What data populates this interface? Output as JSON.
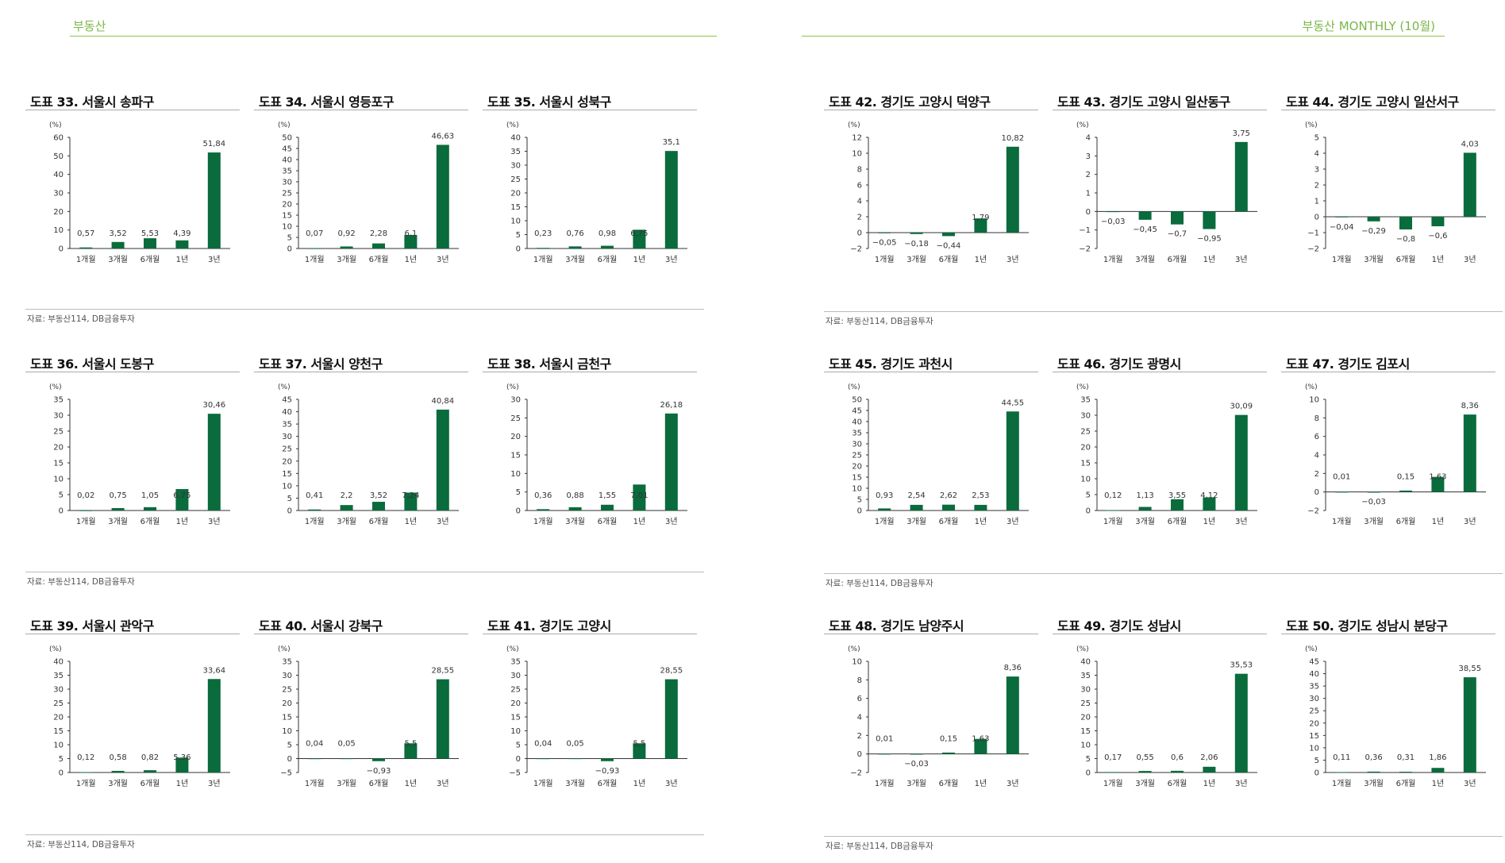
{
  "header": {
    "left": "부동산",
    "right": "부동산 MONTHLY (10월)"
  },
  "source_label": "자료: 부동산114, DB금융투자",
  "colors": {
    "bar": "#0a6b3c",
    "accent": "#7ab648"
  },
  "chart_data": [
    {
      "type": "bar",
      "title": "도표 33. 서울시 송파구",
      "unit": "(%)",
      "categories": [
        "1개월",
        "3개월",
        "6개월",
        "1년",
        "3년"
      ],
      "values": [
        0.57,
        3.52,
        5.53,
        4.39,
        51.84
      ],
      "labels": [
        "0,57",
        "3,52",
        "5,53",
        "4,39",
        "51,84"
      ],
      "ylim": [
        0,
        60
      ],
      "ticks": [
        0,
        10,
        20,
        30,
        40,
        50,
        60
      ]
    },
    {
      "type": "bar",
      "title": "도표 34. 서울시 영등포구",
      "unit": "(%)",
      "categories": [
        "1개월",
        "3개월",
        "6개월",
        "1년",
        "3년"
      ],
      "values": [
        0.07,
        0.92,
        2.28,
        6.1,
        46.63
      ],
      "labels": [
        "0,07",
        "0,92",
        "2,28",
        "6,1",
        "46,63"
      ],
      "ylim": [
        0,
        50
      ],
      "ticks": [
        0,
        5,
        10,
        15,
        20,
        25,
        30,
        35,
        40,
        45,
        50
      ]
    },
    {
      "type": "bar",
      "title": "도표 35. 서울시 성북구",
      "unit": "(%)",
      "categories": [
        "1개월",
        "3개월",
        "6개월",
        "1년",
        "3년"
      ],
      "values": [
        0.23,
        0.76,
        0.98,
        6.75,
        35.1
      ],
      "labels": [
        "0,23",
        "0,76",
        "0,98",
        "6,75",
        "35,1"
      ],
      "ylim": [
        0,
        40
      ],
      "ticks": [
        0,
        5,
        10,
        15,
        20,
        25,
        30,
        35,
        40
      ]
    },
    {
      "type": "bar",
      "title": "도표 36. 서울시 도봉구",
      "unit": "(%)",
      "categories": [
        "1개월",
        "3개월",
        "6개월",
        "1년",
        "3년"
      ],
      "values": [
        0.02,
        0.75,
        1.05,
        6.75,
        30.46
      ],
      "labels": [
        "0,02",
        "0,75",
        "1,05",
        "6,75",
        "30,46"
      ],
      "ylim": [
        0,
        35
      ],
      "ticks": [
        0,
        5,
        10,
        15,
        20,
        25,
        30,
        35
      ]
    },
    {
      "type": "bar",
      "title": "도표 37. 서울시 양천구",
      "unit": "(%)",
      "categories": [
        "1개월",
        "3개월",
        "6개월",
        "1년",
        "3년"
      ],
      "values": [
        0.41,
        2.2,
        3.52,
        7.24,
        40.84
      ],
      "labels": [
        "0,41",
        "2,2",
        "3,52",
        "7,24",
        "40,84"
      ],
      "ylim": [
        0,
        45
      ],
      "ticks": [
        0,
        5,
        10,
        15,
        20,
        25,
        30,
        35,
        40,
        45
      ]
    },
    {
      "type": "bar",
      "title": "도표 38. 서울시 금천구",
      "unit": "(%)",
      "categories": [
        "1개월",
        "3개월",
        "6개월",
        "1년",
        "3년"
      ],
      "values": [
        0.36,
        0.88,
        1.55,
        7.01,
        26.18
      ],
      "labels": [
        "0,36",
        "0,88",
        "1,55",
        "7,01",
        "26,18"
      ],
      "ylim": [
        0,
        30
      ],
      "ticks": [
        0,
        5,
        10,
        15,
        20,
        25,
        30
      ]
    },
    {
      "type": "bar",
      "title": "도표 39. 서울시 관악구",
      "unit": "(%)",
      "categories": [
        "1개월",
        "3개월",
        "6개월",
        "1년",
        "3년"
      ],
      "values": [
        0.12,
        0.58,
        0.82,
        5.36,
        33.64
      ],
      "labels": [
        "0,12",
        "0,58",
        "0,82",
        "5,36",
        "33,64"
      ],
      "ylim": [
        0,
        40
      ],
      "ticks": [
        0,
        5,
        10,
        15,
        20,
        25,
        30,
        35,
        40
      ]
    },
    {
      "type": "bar",
      "title": "도표 40. 서울시 강북구",
      "unit": "(%)",
      "categories": [
        "1개월",
        "3개월",
        "6개월",
        "1년",
        "3년"
      ],
      "values": [
        0.04,
        0.05,
        -0.93,
        5.5,
        28.55
      ],
      "labels": [
        "0,04",
        "0,05",
        "−0,93",
        "5,5",
        "28,55"
      ],
      "ylim": [
        -5,
        35
      ],
      "ticks": [
        -5,
        0,
        5,
        10,
        15,
        20,
        25,
        30,
        35
      ]
    },
    {
      "type": "bar",
      "title": "도표 41. 경기도 고양시",
      "unit": "(%)",
      "categories": [
        "1개월",
        "3개월",
        "6개월",
        "1년",
        "3년"
      ],
      "values": [
        0.04,
        0.05,
        -0.93,
        5.5,
        28.55
      ],
      "labels": [
        "0,04",
        "0,05",
        "−0,93",
        "5,5",
        "28,55"
      ],
      "ylim": [
        -5,
        35
      ],
      "ticks": [
        -5,
        0,
        5,
        10,
        15,
        20,
        25,
        30,
        35
      ]
    },
    {
      "type": "bar",
      "title": "도표 42. 경기도 고양시 덕양구",
      "unit": "(%)",
      "categories": [
        "1개월",
        "3개월",
        "6개월",
        "1년",
        "3년"
      ],
      "values": [
        -0.05,
        -0.18,
        -0.44,
        1.79,
        10.82
      ],
      "labels": [
        "−0,05",
        "−0,18",
        "−0,44",
        "1,79",
        "10,82"
      ],
      "ylim": [
        -2,
        12
      ],
      "ticks": [
        -2,
        0,
        2,
        4,
        6,
        8,
        10,
        12
      ]
    },
    {
      "type": "bar",
      "title": "도표 43. 경기도 고양시 일산동구",
      "unit": "(%)",
      "categories": [
        "1개월",
        "3개월",
        "6개월",
        "1년",
        "3년"
      ],
      "values": [
        -0.03,
        -0.45,
        -0.7,
        -0.95,
        3.75
      ],
      "labels": [
        "−0,03",
        "−0,45",
        "−0,7",
        "−0,95",
        "3,75"
      ],
      "ylim": [
        -2,
        4
      ],
      "ticks": [
        -2,
        -1,
        0,
        1,
        2,
        3,
        4
      ]
    },
    {
      "type": "bar",
      "title": "도표 44. 경기도 고양시 일산서구",
      "unit": "(%)",
      "categories": [
        "1개월",
        "3개월",
        "6개월",
        "1년",
        "3년"
      ],
      "values": [
        -0.04,
        -0.29,
        -0.8,
        -0.6,
        4.03
      ],
      "labels": [
        "−0,04",
        "−0,29",
        "−0,8",
        "−0,6",
        "4,03"
      ],
      "ylim": [
        -2,
        5
      ],
      "ticks": [
        -2,
        -1,
        0,
        1,
        2,
        3,
        4,
        5
      ]
    },
    {
      "type": "bar",
      "title": "도표 45. 경기도 과천시",
      "unit": "(%)",
      "categories": [
        "1개월",
        "3개월",
        "6개월",
        "1년",
        "3년"
      ],
      "values": [
        0.93,
        2.54,
        2.62,
        2.53,
        44.55
      ],
      "labels": [
        "0,93",
        "2,54",
        "2,62",
        "2,53",
        "44,55"
      ],
      "ylim": [
        0,
        50
      ],
      "ticks": [
        0,
        5,
        10,
        15,
        20,
        25,
        30,
        35,
        40,
        45,
        50
      ]
    },
    {
      "type": "bar",
      "title": "도표 46. 경기도 광명시",
      "unit": "(%)",
      "categories": [
        "1개월",
        "3개월",
        "6개월",
        "1년",
        "3년"
      ],
      "values": [
        0.12,
        1.13,
        3.55,
        4.12,
        30.09
      ],
      "labels": [
        "0,12",
        "1,13",
        "3,55",
        "4,12",
        "30,09"
      ],
      "ylim": [
        0,
        35
      ],
      "ticks": [
        0,
        5,
        10,
        15,
        20,
        25,
        30,
        35
      ]
    },
    {
      "type": "bar",
      "title": "도표 47. 경기도 김포시",
      "unit": "(%)",
      "categories": [
        "1개월",
        "3개월",
        "6개월",
        "1년",
        "3년"
      ],
      "values": [
        0.01,
        -0.03,
        0.15,
        1.63,
        8.36
      ],
      "labels": [
        "0,01",
        "−0,03",
        "0,15",
        "1,63",
        "8,36"
      ],
      "ylim": [
        -2,
        10
      ],
      "ticks": [
        -2,
        0,
        2,
        4,
        6,
        8,
        10
      ]
    },
    {
      "type": "bar",
      "title": "도표 48. 경기도 남양주시",
      "unit": "(%)",
      "categories": [
        "1개월",
        "3개월",
        "6개월",
        "1년",
        "3년"
      ],
      "values": [
        0.01,
        -0.03,
        0.15,
        1.63,
        8.36
      ],
      "labels": [
        "0,01",
        "−0,03",
        "0,15",
        "1,63",
        "8,36"
      ],
      "ylim": [
        -2,
        10
      ],
      "ticks": [
        -2,
        0,
        2,
        4,
        6,
        8,
        10
      ]
    },
    {
      "type": "bar",
      "title": "도표 49. 경기도 성남시",
      "unit": "(%)",
      "categories": [
        "1개월",
        "3개월",
        "6개월",
        "1년",
        "3년"
      ],
      "values": [
        0.17,
        0.55,
        0.6,
        2.06,
        35.53
      ],
      "labels": [
        "0,17",
        "0,55",
        "0,6",
        "2,06",
        "35,53"
      ],
      "ylim": [
        0,
        40
      ],
      "ticks": [
        0,
        5,
        10,
        15,
        20,
        25,
        30,
        35,
        40
      ]
    },
    {
      "type": "bar",
      "title": "도표 50. 경기도 성남시 분당구",
      "unit": "(%)",
      "categories": [
        "1개월",
        "3개월",
        "6개월",
        "1년",
        "3년"
      ],
      "values": [
        0.11,
        0.36,
        0.31,
        1.86,
        38.55
      ],
      "labels": [
        "0,11",
        "0,36",
        "0,31",
        "1,86",
        "38,55"
      ],
      "ylim": [
        0,
        45
      ],
      "ticks": [
        0,
        5,
        10,
        15,
        20,
        25,
        30,
        35,
        40,
        45
      ]
    }
  ]
}
